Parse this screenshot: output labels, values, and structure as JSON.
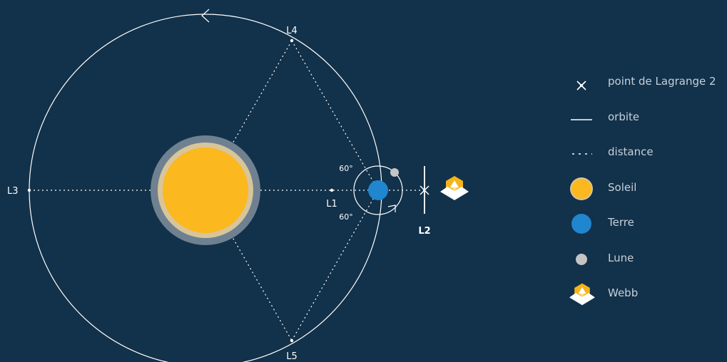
{
  "labels": {
    "l1": "L1",
    "l2": "L2",
    "l3": "L3",
    "l4": "L4",
    "l5": "L5",
    "angle_top": "60°",
    "angle_bottom": "60°"
  },
  "legend": {
    "items": [
      {
        "icon": "x-mark-icon",
        "label": "point de Lagrange 2"
      },
      {
        "icon": "solid-line-icon",
        "label": "orbite"
      },
      {
        "icon": "dashed-line-icon",
        "label": "distance"
      },
      {
        "icon": "sun-circle-icon",
        "label": "Soleil"
      },
      {
        "icon": "earth-circle-icon",
        "label": "Terre"
      },
      {
        "icon": "moon-circle-icon",
        "label": "Lune"
      },
      {
        "icon": "webb-telescope-icon",
        "label": "Webb"
      }
    ]
  },
  "colors": {
    "background": "#12314a",
    "sun": "#fbb81f",
    "sun_halo_inner": "#d8c59a",
    "sun_halo_outer": "#6f8190",
    "earth": "#1f86cf",
    "moon": "#c4c4c4",
    "webb_gold": "#f4b41a",
    "line": "#ffffff",
    "legend_text": "#c6d0da"
  }
}
